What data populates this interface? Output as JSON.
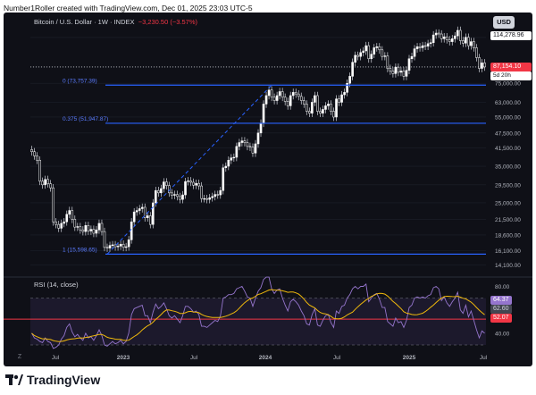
{
  "caption": "Number1Roller created with TradingView.com, Dec 01, 2025 23:03 UTC-5",
  "header": {
    "symbol": "Bitcoin / U.S. Dollar · 1W · INDEX",
    "change": "−3,230.50 (−3.57%)"
  },
  "currency_button": "USD",
  "price_tags": {
    "top_mark": "114,278.96",
    "current": "87,154.10",
    "countdown": "5d 20h"
  },
  "rsi": {
    "title": "RSI (14, close)",
    "tags": [
      "64.37",
      "62.60",
      "52.07"
    ]
  },
  "footer": {
    "brand": "TradingView"
  },
  "zoom_icon": "Z",
  "colors": {
    "background": "#0f1017",
    "up": "#ffffff",
    "down": "#ffffff",
    "fib": "#2962ff",
    "trend": "#2962ff",
    "rsi_line": "#9575cd",
    "rsi_ma": "#f0b90b",
    "rsi_band": "#f23645",
    "current_price": "#f23645"
  },
  "chart_data": [
    {
      "type": "candlestick",
      "title": "Bitcoin / U.S. Dollar · 1W · INDEX",
      "ylabel": "USD",
      "y_scale": "log",
      "ylim": [
        13500,
        120000
      ],
      "y_ticks": [
        14100,
        16100,
        18600,
        21500,
        25000,
        29500,
        35000,
        41500,
        47500,
        55000,
        63000,
        75000,
        87154.1,
        114278.96
      ],
      "y_tick_labels": [
        "14,100.00",
        "16,100.00",
        "18,600.00",
        "21,500.00",
        "25,000.00",
        "29,500.00",
        "35,000.00",
        "41,500.00",
        "47,500.00",
        "55,000.00",
        "63,000.00",
        "75,000.00",
        "87,154.10",
        "114,278.96"
      ],
      "x_tick_labels": [
        "Jul",
        "2023",
        "Jul",
        "2024",
        "Jul",
        "2025",
        "Jul"
      ],
      "close_series": [
        40000,
        38500,
        37000,
        30500,
        29500,
        31000,
        29800,
        28700,
        21000,
        20500,
        19800,
        20700,
        21000,
        22500,
        23300,
        21500,
        20000,
        20100,
        19500,
        19200,
        20300,
        19300,
        19600,
        18900,
        19500,
        20700,
        19200,
        16600,
        16500,
        16900,
        17000,
        16700,
        16800,
        17100,
        16600,
        16700,
        17800,
        21000,
        23000,
        23300,
        23700,
        24000,
        21800,
        22200,
        20500,
        25000,
        28000,
        27400,
        28500,
        30300,
        29300,
        27400,
        26800,
        27000,
        26500,
        25800,
        26900,
        30400,
        30600,
        30200,
        29400,
        29900,
        29200,
        26000,
        26000,
        25800,
        26200,
        26500,
        27000,
        26900,
        28000,
        34500,
        35000,
        37000,
        37800,
        38000,
        42000,
        43500,
        44200,
        43500,
        42000,
        41700,
        39500,
        43000,
        47500,
        52000,
        62000,
        67000,
        70500,
        66000,
        64000,
        67000,
        69500,
        66000,
        63500,
        61000,
        67000,
        69000,
        68000,
        66500,
        64000,
        62000,
        58000,
        57000,
        63000,
        67000,
        58000,
        57000,
        59000,
        61000,
        62000,
        58000,
        55000,
        65000,
        63000,
        67500,
        69000,
        75000,
        80000,
        91000,
        97000,
        96000,
        99500,
        101000,
        106000,
        94000,
        98000,
        104000,
        105000,
        102000,
        96000,
        96500,
        86000,
        84000,
        82000,
        87000,
        83000,
        84000,
        80000,
        84500,
        94000,
        96000,
        103000,
        105000,
        104000,
        106000,
        105500,
        108000,
        109000,
        117000,
        119000,
        118000,
        113000,
        115000,
        112000,
        110000,
        113000,
        116000,
        122000,
        111000,
        108500,
        114500,
        106000,
        110000,
        104000,
        95000,
        86000,
        90500,
        87154.1
      ]
    },
    {
      "type": "fibonacci_retracement",
      "levels": [
        {
          "label": "0 (73,757.39)",
          "ratio": 0,
          "value": 73757.39
        },
        {
          "label": "0.375 (51,947.87)",
          "ratio": 0.375,
          "value": 51947.87
        },
        {
          "label": "1 (15,598.65)",
          "ratio": 1,
          "value": 15598.65
        }
      ]
    },
    {
      "type": "line",
      "title": "RSI (14, close)",
      "ylim": [
        30,
        85
      ],
      "y_ticks": [
        40.0,
        80.0
      ],
      "y_tick_labels": [
        "40.00",
        "80.00"
      ],
      "band": [
        30,
        70
      ],
      "marker_lines": [
        52.07
      ],
      "series": [
        {
          "name": "RSI",
          "values": [
            40,
            36,
            35,
            33,
            32,
            36,
            33,
            32,
            27,
            28,
            30,
            35,
            38,
            45,
            48,
            41,
            37,
            39,
            36,
            34,
            40,
            36,
            37,
            34,
            38,
            43,
            38,
            30,
            29,
            31,
            33,
            31,
            32,
            34,
            31,
            33,
            40,
            56,
            61,
            62,
            63,
            64,
            55,
            55,
            49,
            58,
            65,
            61,
            63,
            66,
            61,
            55,
            53,
            55,
            52,
            49,
            55,
            63,
            63,
            61,
            58,
            59,
            56,
            46,
            46,
            45,
            47,
            49,
            51,
            50,
            55,
            70,
            71,
            73,
            73,
            74,
            78,
            79,
            80,
            76,
            71,
            70,
            63,
            70,
            76,
            79,
            86,
            88,
            88,
            78,
            74,
            77,
            78,
            70,
            64,
            59,
            67,
            69,
            67,
            64,
            59,
            55,
            48,
            47,
            56,
            61,
            47,
            46,
            51,
            55,
            56,
            49,
            45,
            59,
            57,
            63,
            64,
            70,
            73,
            78,
            80,
            78,
            80,
            80,
            82,
            67,
            70,
            73,
            74,
            69,
            62,
            62,
            50,
            48,
            46,
            53,
            49,
            50,
            45,
            51,
            62,
            64,
            70,
            71,
            70,
            71,
            70,
            72,
            73,
            79,
            80,
            78,
            68,
            71,
            66,
            63,
            67,
            70,
            75,
            60,
            57,
            64,
            54,
            59,
            51,
            43,
            36,
            42,
            40
          ]
        }
      ]
    }
  ]
}
